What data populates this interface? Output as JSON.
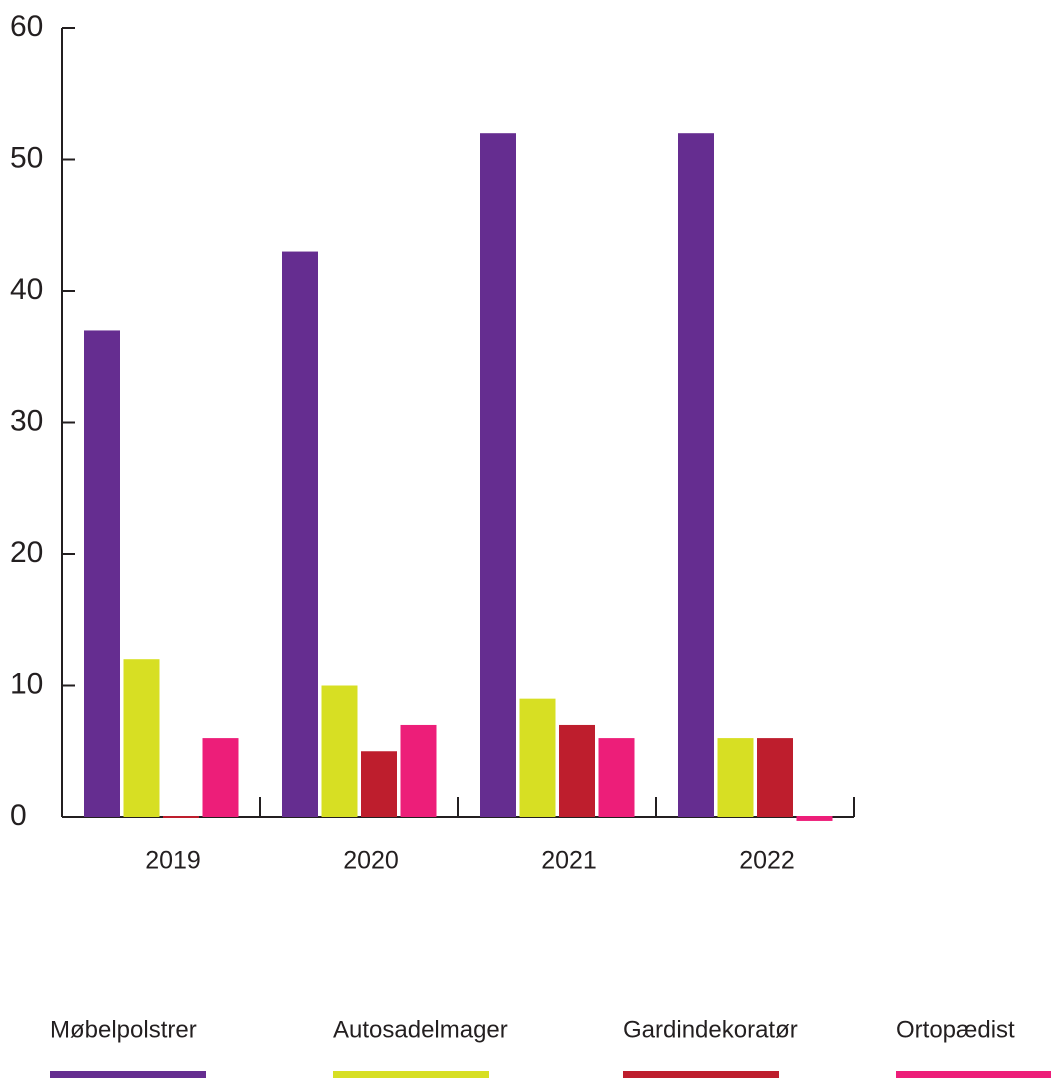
{
  "chart_data": {
    "type": "bar",
    "categories": [
      "2019",
      "2020",
      "2021",
      "2022"
    ],
    "series": [
      {
        "name": "Møbelpolstrer",
        "color": "#652d90",
        "values": [
          37,
          43,
          52,
          52
        ]
      },
      {
        "name": "Autosadelmager",
        "color": "#d7df23",
        "values": [
          12,
          10,
          9,
          6
        ]
      },
      {
        "name": "Gardindekoratør",
        "color": "#be1e2d",
        "values": [
          0,
          5,
          7,
          6
        ]
      },
      {
        "name": "Ortopædist",
        "color": "#ed1e79",
        "values": [
          6,
          7,
          6,
          -0.3
        ]
      }
    ],
    "ylim": [
      0,
      60
    ],
    "yticks": [
      0,
      10,
      20,
      30,
      40,
      50,
      60
    ],
    "legend": "bottom"
  }
}
